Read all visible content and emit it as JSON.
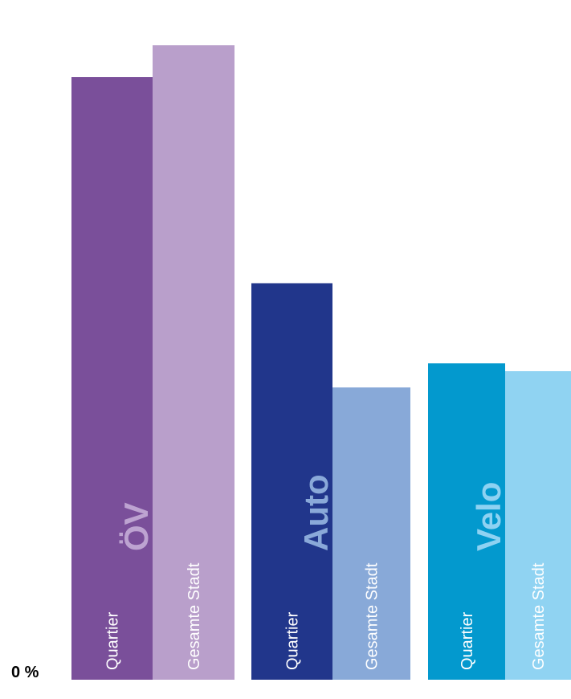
{
  "chart_data": {
    "type": "bar",
    "title": "",
    "xlabel": "",
    "ylabel": "",
    "zero_tick": "0 %",
    "groups": [
      {
        "label": "ÖV",
        "label_color": "#bda3d1",
        "bars": [
          {
            "category": "Quartier",
            "value": 100,
            "color": "#7a4f9a"
          },
          {
            "category": "Gesamte Stadt",
            "value": 105.3,
            "color": "#b99fcb"
          }
        ]
      },
      {
        "label": "Auto",
        "label_color": "#8aa9d9",
        "bars": [
          {
            "category": "Quartier",
            "value": 65.8,
            "color": "#21368b"
          },
          {
            "category": "Gesamte Stadt",
            "value": 48.5,
            "color": "#88a9d8"
          }
        ]
      },
      {
        "label": "Velo",
        "label_color": "#8ed2f2",
        "bars": [
          {
            "category": "Quartier",
            "value": 52.5,
            "color": "#0399ce"
          },
          {
            "category": "Gesamte Stadt",
            "value": 51.2,
            "color": "#90d3f2"
          }
        ]
      }
    ]
  }
}
